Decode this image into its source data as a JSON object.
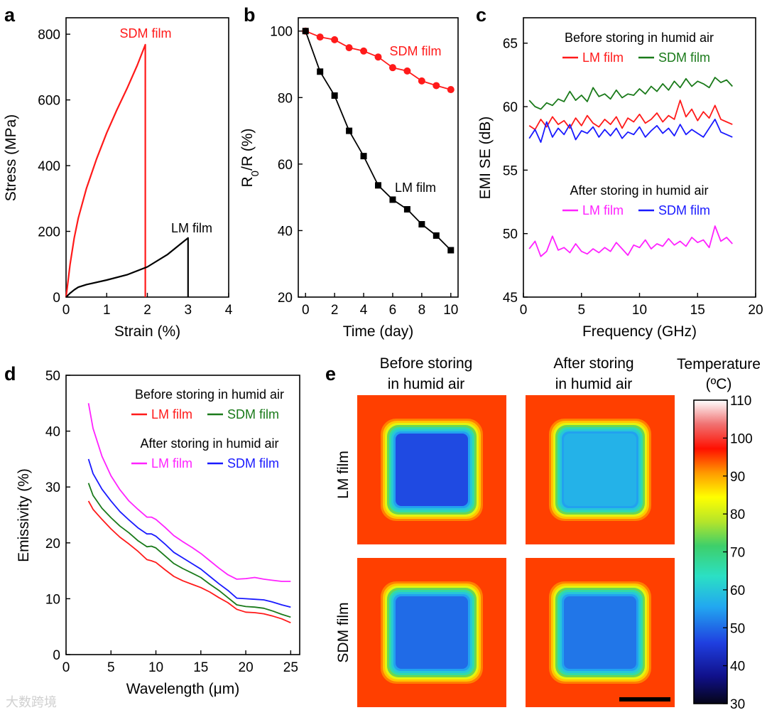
{
  "chart_data": [
    {
      "panel": "a",
      "type": "line",
      "xlabel": "Strain (%)",
      "ylabel": "Stress (MPa)",
      "xlim": [
        0,
        4
      ],
      "ylim": [
        0,
        850
      ],
      "xticks": [
        0,
        1,
        2,
        3,
        4
      ],
      "yticks": [
        0,
        200,
        400,
        600,
        800
      ],
      "series": [
        {
          "name": "SDM film",
          "color": "#ff1a1a",
          "x": [
            0,
            0.05,
            0.1,
            0.2,
            0.3,
            0.5,
            0.75,
            1.0,
            1.25,
            1.5,
            1.75,
            1.95,
            1.95
          ],
          "y": [
            0,
            50,
            100,
            180,
            240,
            330,
            420,
            500,
            570,
            635,
            705,
            768,
            0
          ]
        },
        {
          "name": "LM film",
          "color": "#000000",
          "x": [
            0,
            0.1,
            0.2,
            0.3,
            0.5,
            1.0,
            1.5,
            2.0,
            2.5,
            2.8,
            3.0,
            3.0
          ],
          "y": [
            0,
            12,
            22,
            30,
            38,
            52,
            68,
            92,
            130,
            160,
            180,
            0
          ]
        }
      ]
    },
    {
      "panel": "b",
      "type": "line",
      "xlabel": "Time (day)",
      "ylabel": "R0/R (%)",
      "xlim": [
        -0.5,
        10.5
      ],
      "ylim": [
        20,
        104
      ],
      "xticks": [
        0,
        2,
        4,
        6,
        8,
        10
      ],
      "yticks": [
        20,
        40,
        60,
        80,
        100
      ],
      "series": [
        {
          "name": "SDM film",
          "color": "#ff1a1a",
          "marker": "circle",
          "x": [
            0,
            1,
            2,
            3,
            4,
            5,
            6,
            7,
            8,
            9,
            10
          ],
          "y": [
            100,
            98.2,
            97.4,
            95,
            94,
            92.2,
            89,
            88,
            85,
            83.6,
            82.4
          ]
        },
        {
          "name": "LM film",
          "color": "#000000",
          "marker": "square",
          "x": [
            0,
            1,
            2,
            3,
            4,
            5,
            6,
            7,
            8,
            9,
            10
          ],
          "y": [
            100,
            87.8,
            80.6,
            70,
            62.4,
            53.6,
            49.3,
            46.4,
            41.9,
            38.5,
            34.1
          ]
        }
      ]
    },
    {
      "panel": "c",
      "type": "line",
      "xlabel": "Frequency (GHz)",
      "ylabel": "EMI SE (dB)",
      "xlim": [
        0,
        20
      ],
      "ylim": [
        45,
        67
      ],
      "xticks": [
        0,
        5,
        10,
        15,
        20
      ],
      "yticks": [
        45,
        50,
        55,
        60,
        65
      ],
      "legend_before": "Before storing in humid air",
      "legend_after": "After storing in humid air",
      "series": [
        {
          "name": "LM film",
          "group": "before",
          "color": "#ff1a1a",
          "x": [
            0.5,
            1,
            1.5,
            2,
            2.5,
            3,
            3.5,
            4,
            4.5,
            5,
            5.5,
            6,
            6.5,
            7,
            7.5,
            8,
            8.5,
            9,
            9.5,
            10,
            10.5,
            11,
            11.5,
            12,
            12.5,
            13,
            13.5,
            14,
            14.5,
            15,
            15.5,
            16,
            16.5,
            17,
            17.5,
            18
          ],
          "y": [
            58.5,
            58.2,
            59.0,
            58.4,
            59.2,
            58.6,
            58.9,
            58.3,
            59.1,
            58.5,
            59.3,
            58.7,
            58.4,
            59.0,
            58.6,
            59.2,
            58.3,
            59.1,
            58.8,
            59.4,
            58.7,
            59.0,
            59.5,
            58.8,
            59.3,
            59.0,
            60.5,
            59.2,
            59.8,
            58.9,
            59.6,
            59.1,
            60.1,
            59.0,
            58.8,
            58.6
          ]
        },
        {
          "name": "SDM film",
          "group": "before",
          "color": "#1a7a1a",
          "x": [
            0.5,
            1,
            1.5,
            2,
            2.5,
            3,
            3.5,
            4,
            4.5,
            5,
            5.5,
            6,
            6.5,
            7,
            7.5,
            8,
            8.5,
            9,
            9.5,
            10,
            10.5,
            11,
            11.5,
            12,
            12.5,
            13,
            13.5,
            14,
            14.5,
            15,
            15.5,
            16,
            16.5,
            17,
            17.5,
            18
          ],
          "y": [
            60.5,
            60.0,
            59.8,
            60.3,
            60.1,
            60.6,
            60.4,
            61.2,
            60.5,
            60.9,
            60.4,
            61.5,
            60.8,
            61.0,
            60.6,
            61.3,
            60.7,
            61.0,
            60.9,
            61.4,
            61.0,
            61.6,
            61.2,
            61.8,
            61.3,
            62.0,
            61.5,
            62.2,
            61.6,
            62.0,
            61.8,
            61.5,
            62.3,
            61.9,
            62.1,
            61.6
          ]
        },
        {
          "name": "LM film",
          "group": "after",
          "color": "#ff22ff",
          "x": [
            0.5,
            1,
            1.5,
            2,
            2.5,
            3,
            3.5,
            4,
            4.5,
            5,
            5.5,
            6,
            6.5,
            7,
            7.5,
            8,
            8.5,
            9,
            9.5,
            10,
            10.5,
            11,
            11.5,
            12,
            12.5,
            13,
            13.5,
            14,
            14.5,
            15,
            15.5,
            16,
            16.5,
            17,
            17.5,
            18
          ],
          "y": [
            48.8,
            49.4,
            48.2,
            48.6,
            49.8,
            48.7,
            48.9,
            48.5,
            49.2,
            48.6,
            48.4,
            48.8,
            48.5,
            48.9,
            48.6,
            49.3,
            48.8,
            48.3,
            49.1,
            48.9,
            49.5,
            48.8,
            49.2,
            49.0,
            49.6,
            49.1,
            49.4,
            49.0,
            49.7,
            49.3,
            49.5,
            48.9,
            50.6,
            49.4,
            49.7,
            49.2
          ]
        },
        {
          "name": "SDM film",
          "group": "after",
          "color": "#1a1aff",
          "x": [
            0.5,
            1,
            1.5,
            2,
            2.5,
            3,
            3.5,
            4,
            4.5,
            5,
            5.5,
            6,
            6.5,
            7,
            7.5,
            8,
            8.5,
            9,
            9.5,
            10,
            10.5,
            11,
            11.5,
            12,
            12.5,
            13,
            13.5,
            14,
            14.5,
            15,
            15.5,
            16,
            16.5,
            17,
            17.5,
            18
          ],
          "y": [
            57.5,
            58.2,
            57.2,
            58.8,
            57.6,
            58.3,
            57.8,
            58.6,
            57.4,
            58.1,
            57.9,
            58.4,
            57.6,
            58.2,
            57.7,
            58.3,
            57.5,
            58.0,
            57.8,
            58.4,
            57.6,
            58.1,
            58.5,
            57.9,
            58.3,
            57.7,
            58.6,
            57.8,
            58.2,
            57.9,
            57.6,
            58.3,
            59.0,
            58.0,
            57.8,
            57.6
          ]
        }
      ]
    },
    {
      "panel": "d",
      "type": "line",
      "xlabel": "Wavelength (μm)",
      "ylabel": "Emissivity (%)",
      "xlim": [
        0,
        26
      ],
      "ylim": [
        0,
        50
      ],
      "xticks": [
        0,
        5,
        10,
        15,
        20,
        25
      ],
      "yticks": [
        0,
        10,
        20,
        30,
        40,
        50
      ],
      "legend_before": "Before storing in humid air",
      "legend_after": "After storing in humid air",
      "series": [
        {
          "name": "LM film",
          "group": "before",
          "color": "#ff1a1a",
          "x": [
            2.5,
            3,
            4,
            5,
            6,
            7,
            8,
            9,
            9.5,
            10,
            11,
            12,
            13,
            14,
            15,
            16,
            17,
            18,
            19,
            20,
            21,
            22,
            23,
            24,
            25
          ],
          "y": [
            27.5,
            26,
            24.2,
            22.5,
            21,
            19.8,
            18.5,
            17,
            16.8,
            16.5,
            15.2,
            14,
            13.2,
            12.6,
            12,
            11.2,
            10.2,
            9.3,
            8.1,
            7.6,
            7.5,
            7.3,
            6.9,
            6.4,
            5.7
          ]
        },
        {
          "name": "SDM film",
          "group": "before",
          "color": "#1a7a1a",
          "x": [
            2.5,
            3,
            4,
            5,
            6,
            7,
            8,
            9,
            9.5,
            10,
            11,
            12,
            13,
            14,
            15,
            16,
            17,
            18,
            19,
            20,
            21,
            22,
            23,
            24,
            25
          ],
          "y": [
            30.7,
            28.5,
            26.2,
            24.5,
            23,
            21.8,
            20.4,
            19.3,
            19.4,
            19.1,
            17.7,
            16.3,
            15.4,
            14.6,
            13.8,
            12.6,
            11.5,
            10.2,
            8.9,
            8.6,
            8.5,
            8.3,
            7.8,
            7.2,
            6.7
          ]
        },
        {
          "name": "LM film",
          "group": "after",
          "color": "#ff22ff",
          "x": [
            2.5,
            3,
            4,
            5,
            6,
            7,
            8,
            9,
            9.5,
            10,
            11,
            12,
            13,
            14,
            15,
            16,
            17,
            18,
            19,
            20,
            21,
            22,
            23,
            24,
            25
          ],
          "y": [
            45,
            40.5,
            35.5,
            32,
            29.5,
            27.5,
            26,
            24.6,
            24.6,
            24.2,
            22.8,
            21.3,
            20.2,
            19.2,
            18.1,
            16.8,
            15.5,
            14.3,
            13.5,
            13.6,
            13.8,
            13.5,
            13.3,
            13.1,
            13.1
          ]
        },
        {
          "name": "SDM film",
          "group": "after",
          "color": "#1a1aff",
          "x": [
            2.5,
            3,
            4,
            5,
            6,
            7,
            8,
            9,
            9.5,
            10,
            11,
            12,
            13,
            14,
            15,
            16,
            17,
            18,
            19,
            20,
            21,
            22,
            23,
            24,
            25
          ],
          "y": [
            35,
            32.4,
            29.6,
            27.5,
            25.6,
            24.1,
            22.7,
            21.6,
            21.6,
            21.2,
            19.8,
            18.3,
            17.3,
            16.3,
            15.3,
            14,
            12.7,
            11.5,
            10.1,
            10,
            9.9,
            9.8,
            9.4,
            8.9,
            8.5
          ]
        }
      ]
    },
    {
      "panel": "e",
      "type": "heatmap",
      "col_labels": [
        "Before storing\nin humid air",
        "After storing\nin humid air"
      ],
      "row_labels": [
        "LM film",
        "SDM film"
      ],
      "colorbar_title": "Temperature\n(ºC)",
      "colorbar_ticks": [
        30,
        40,
        50,
        60,
        70,
        80,
        90,
        100,
        110
      ],
      "colorbar_range": [
        30,
        110
      ],
      "background_temperature": 95,
      "inner_temperature": [
        [
          47,
          57
        ],
        [
          50,
          51
        ]
      ]
    }
  ],
  "ui": {
    "labels": {
      "a": "a",
      "b": "b",
      "c": "c",
      "d": "d",
      "e": "e"
    },
    "watermark": "大数跨境"
  }
}
